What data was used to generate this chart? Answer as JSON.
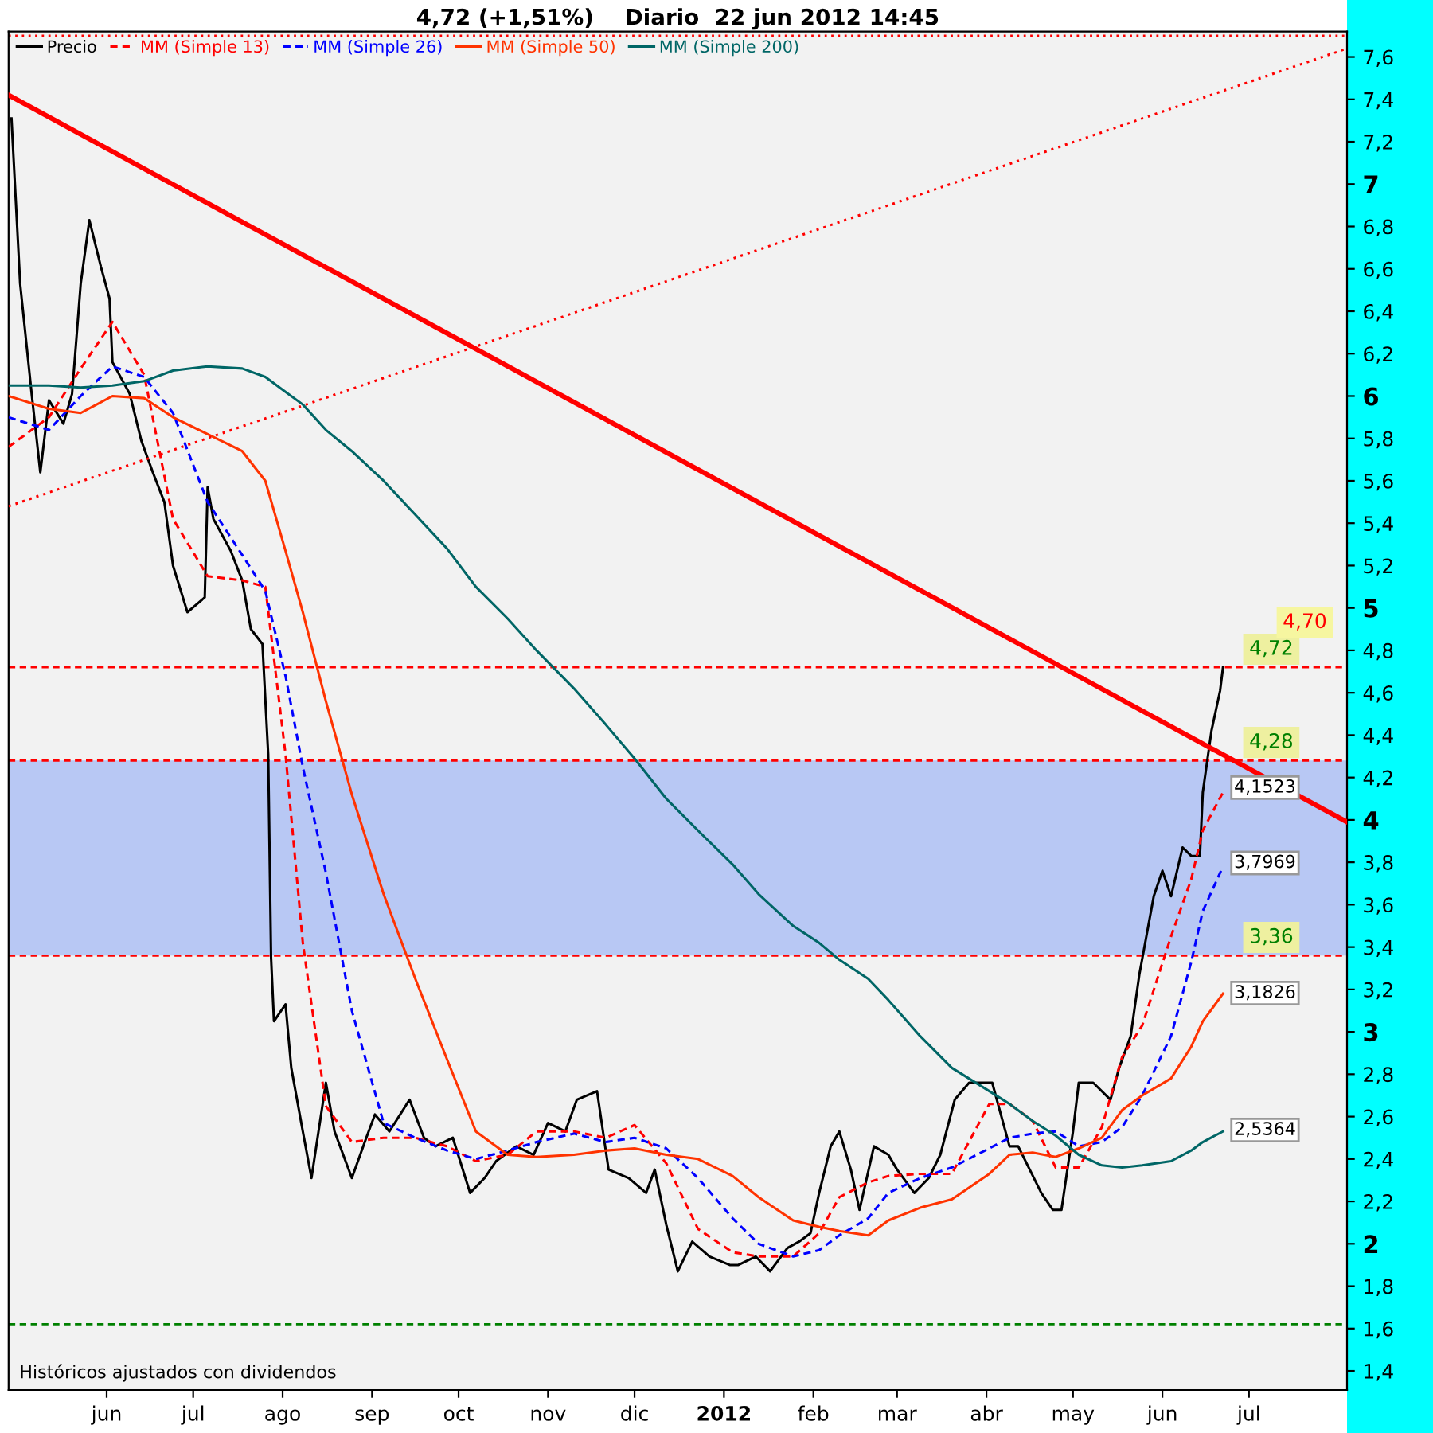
{
  "chart_data": {
    "type": "line",
    "title": "4,72 (+1,51%)    Diario  22 jun 2012 14:45",
    "xlim": [
      "2011-04-28",
      "2012-08-04"
    ],
    "xticks": [
      {
        "value": "2011-06-01",
        "label": "jun"
      },
      {
        "value": "2011-07-01",
        "label": "jul"
      },
      {
        "value": "2011-08-01",
        "label": "ago"
      },
      {
        "value": "2011-09-01",
        "label": "sep"
      },
      {
        "value": "2011-10-01",
        "label": "oct"
      },
      {
        "value": "2011-11-01",
        "label": "nov"
      },
      {
        "value": "2011-12-01",
        "label": "dic"
      },
      {
        "value": "2012-01-01",
        "label": "2012"
      },
      {
        "value": "2012-02-01",
        "label": "feb"
      },
      {
        "value": "2012-03-01",
        "label": "mar"
      },
      {
        "value": "2012-04-01",
        "label": "abr"
      },
      {
        "value": "2012-05-01",
        "label": "may"
      },
      {
        "value": "2012-06-01",
        "label": "jun"
      },
      {
        "value": "2012-07-01",
        "label": "jul"
      }
    ],
    "ylim": [
      1.31,
      7.72
    ],
    "yticks": [
      {
        "value": 1.4,
        "label": "1,4"
      },
      {
        "value": 1.6,
        "label": "1,6"
      },
      {
        "value": 1.8,
        "label": "1,8"
      },
      2,
      {
        "value": 2.2,
        "label": "2,2"
      },
      {
        "value": 2.4,
        "label": "2,4"
      },
      {
        "value": 2.6,
        "label": "2,6"
      },
      {
        "value": 2.8,
        "label": "2,8"
      },
      3,
      {
        "value": 3.2,
        "label": "3,2"
      },
      {
        "value": 3.4,
        "label": "3,4"
      },
      {
        "value": 3.6,
        "label": "3,6"
      },
      {
        "value": 3.8,
        "label": "3,8"
      },
      4,
      {
        "value": 4.2,
        "label": "4,2"
      },
      {
        "value": 4.4,
        "label": "4,4"
      },
      {
        "value": 4.6,
        "label": "4,6"
      },
      {
        "value": 4.8,
        "label": "4,8"
      },
      5,
      {
        "value": 5.2,
        "label": "5,2"
      },
      {
        "value": 5.4,
        "label": "5,4"
      },
      {
        "value": 5.6,
        "label": "5,6"
      },
      {
        "value": 5.8,
        "label": "5,8"
      },
      6,
      {
        "value": 6.2,
        "label": "6,2"
      },
      {
        "value": 6.4,
        "label": "6,4"
      },
      {
        "value": 6.6,
        "label": "6,6"
      },
      {
        "value": 6.8,
        "label": "6,8"
      },
      7,
      {
        "value": 7.2,
        "label": "7,2"
      },
      {
        "value": 7.4,
        "label": "7,4"
      },
      {
        "value": 7.6,
        "label": "7,6"
      }
    ],
    "grid": false,
    "legend": "top left",
    "series": [
      {
        "name": "Precio",
        "color": "#000000",
        "line_style": "solid",
        "x": [
          "2011-04-29",
          "2011-05-02",
          "2011-05-06",
          "2011-05-09",
          "2011-05-12",
          "2011-05-17",
          "2011-05-20",
          "2011-05-23",
          "2011-05-26",
          "2011-05-30",
          "2011-06-02",
          "2011-06-03",
          "2011-06-09",
          "2011-06-13",
          "2011-06-17",
          "2011-06-21",
          "2011-06-24",
          "2011-06-29",
          "2011-07-05",
          "2011-07-06",
          "2011-07-08",
          "2011-07-14",
          "2011-07-18",
          "2011-07-21",
          "2011-07-25",
          "2011-07-27",
          "2011-07-28",
          "2011-07-29",
          "2011-08-02",
          "2011-08-04",
          "2011-08-08",
          "2011-08-11",
          "2011-08-16",
          "2011-08-19",
          "2011-08-25",
          "2011-08-30",
          "2011-09-02",
          "2011-09-07",
          "2011-09-14",
          "2011-09-19",
          "2011-09-23",
          "2011-09-29",
          "2011-10-05",
          "2011-10-10",
          "2011-10-14",
          "2011-10-21",
          "2011-10-27",
          "2011-11-01",
          "2011-11-07",
          "2011-11-11",
          "2011-11-18",
          "2011-11-22",
          "2011-11-29",
          "2011-12-05",
          "2011-12-08",
          "2011-12-12",
          "2011-12-16",
          "2011-12-21",
          "2011-12-27",
          "2012-01-03",
          "2012-01-06",
          "2012-01-12",
          "2012-01-17",
          "2012-01-23",
          "2012-01-27",
          "2012-01-31",
          "2012-02-03",
          "2012-02-07",
          "2012-02-10",
          "2012-02-14",
          "2012-02-17",
          "2012-02-22",
          "2012-02-27",
          "2012-03-01",
          "2012-03-07",
          "2012-03-12",
          "2012-03-16",
          "2012-03-21",
          "2012-03-26",
          "2012-03-30",
          "2012-04-03",
          "2012-04-09",
          "2012-04-12",
          "2012-04-16",
          "2012-04-20",
          "2012-04-24",
          "2012-04-27",
          "2012-05-01",
          "2012-05-03",
          "2012-05-08",
          "2012-05-14",
          "2012-05-17",
          "2012-05-21",
          "2012-05-24",
          "2012-05-29",
          "2012-06-01",
          "2012-06-04",
          "2012-06-08",
          "2012-06-11",
          "2012-06-14",
          "2012-06-15",
          "2012-06-18",
          "2012-06-21",
          "2012-06-22"
        ],
        "values": [
          7.31,
          6.53,
          6.01,
          5.64,
          5.98,
          5.87,
          6.01,
          6.53,
          6.83,
          6.61,
          6.46,
          6.16,
          6.01,
          5.79,
          5.64,
          5.5,
          5.2,
          4.98,
          5.05,
          5.57,
          5.42,
          5.27,
          5.13,
          4.9,
          4.83,
          4.31,
          3.35,
          3.05,
          3.13,
          2.83,
          2.53,
          2.31,
          2.76,
          2.53,
          2.31,
          2.5,
          2.61,
          2.53,
          2.68,
          2.5,
          2.46,
          2.5,
          2.24,
          2.31,
          2.39,
          2.46,
          2.42,
          2.57,
          2.53,
          2.68,
          2.72,
          2.35,
          2.31,
          2.24,
          2.35,
          2.09,
          1.87,
          2.01,
          1.94,
          1.9,
          1.9,
          1.94,
          1.87,
          1.98,
          2.01,
          2.05,
          2.24,
          2.46,
          2.53,
          2.35,
          2.16,
          2.46,
          2.42,
          2.35,
          2.24,
          2.31,
          2.42,
          2.68,
          2.76,
          2.76,
          2.76,
          2.46,
          2.46,
          2.35,
          2.24,
          2.16,
          2.16,
          2.53,
          2.76,
          2.76,
          2.68,
          2.83,
          2.98,
          3.27,
          3.64,
          3.76,
          3.64,
          3.87,
          3.83,
          3.83,
          4.13,
          4.42,
          4.61,
          4.72
        ]
      },
      {
        "name": "MM (Simple 13)",
        "color": "#ff0000",
        "line_style": "dashed",
        "x": [
          "2011-04-28",
          "2011-05-12",
          "2011-05-23",
          "2011-06-03",
          "2011-06-14",
          "2011-06-24",
          "2011-07-06",
          "2011-07-18",
          "2011-07-26",
          "2011-08-02",
          "2011-08-08",
          "2011-08-16",
          "2011-08-25",
          "2011-09-05",
          "2011-09-16",
          "2011-09-27",
          "2011-10-07",
          "2011-10-18",
          "2011-10-28",
          "2011-11-10",
          "2011-11-21",
          "2011-12-01",
          "2011-12-12",
          "2011-12-23",
          "2012-01-04",
          "2012-01-13",
          "2012-01-25",
          "2012-02-03",
          "2012-02-10",
          "2012-02-20",
          "2012-02-27",
          "2012-03-09",
          "2012-03-20",
          "2012-04-02",
          "2012-04-09",
          "2012-04-17",
          "2012-04-25",
          "2012-05-03",
          "2012-05-11",
          "2012-05-18",
          "2012-05-25",
          "2012-06-04",
          "2012-06-11",
          "2012-06-15",
          "2012-06-22"
        ],
        "values": [
          5.76,
          5.9,
          6.13,
          6.35,
          6.1,
          5.42,
          5.15,
          5.13,
          5.1,
          4.31,
          3.42,
          2.65,
          2.48,
          2.5,
          2.5,
          2.46,
          2.39,
          2.42,
          2.53,
          2.53,
          2.5,
          2.56,
          2.38,
          2.07,
          1.96,
          1.94,
          1.94,
          2.05,
          2.22,
          2.29,
          2.32,
          2.33,
          2.33,
          2.66,
          2.66,
          2.58,
          2.36,
          2.36,
          2.55,
          2.88,
          3.03,
          3.45,
          3.72,
          3.95,
          4.13
        ]
      },
      {
        "name": "MM (Simple 26)",
        "color": "#0000ff",
        "line_style": "dashed",
        "x": [
          "2011-04-28",
          "2011-05-12",
          "2011-05-23",
          "2011-06-03",
          "2011-06-14",
          "2011-06-24",
          "2011-07-06",
          "2011-07-18",
          "2011-07-26",
          "2011-08-02",
          "2011-08-08",
          "2011-08-16",
          "2011-08-25",
          "2011-09-05",
          "2011-09-16",
          "2011-09-27",
          "2011-10-07",
          "2011-10-18",
          "2011-10-28",
          "2011-11-10",
          "2011-11-21",
          "2011-12-01",
          "2011-12-12",
          "2011-12-23",
          "2012-01-04",
          "2012-01-13",
          "2012-01-25",
          "2012-02-03",
          "2012-02-10",
          "2012-02-20",
          "2012-02-27",
          "2012-03-09",
          "2012-03-20",
          "2012-04-02",
          "2012-04-09",
          "2012-04-17",
          "2012-04-25",
          "2012-05-03",
          "2012-05-11",
          "2012-05-18",
          "2012-05-25",
          "2012-06-04",
          "2012-06-11",
          "2012-06-15",
          "2012-06-22"
        ],
        "values": [
          5.9,
          5.84,
          6.0,
          6.14,
          6.09,
          5.92,
          5.5,
          5.25,
          5.08,
          4.68,
          4.25,
          3.75,
          3.1,
          2.57,
          2.5,
          2.44,
          2.4,
          2.44,
          2.48,
          2.52,
          2.48,
          2.5,
          2.45,
          2.31,
          2.12,
          2.0,
          1.94,
          1.97,
          2.04,
          2.12,
          2.24,
          2.31,
          2.36,
          2.45,
          2.5,
          2.52,
          2.53,
          2.46,
          2.48,
          2.55,
          2.7,
          2.98,
          3.33,
          3.57,
          3.78
        ]
      },
      {
        "name": "MM (Simple 50)",
        "color": "#ff3300",
        "line_style": "solid",
        "x": [
          "2011-04-28",
          "2011-05-12",
          "2011-05-23",
          "2011-06-03",
          "2011-06-14",
          "2011-06-24",
          "2011-07-06",
          "2011-07-18",
          "2011-07-26",
          "2011-08-02",
          "2011-08-08",
          "2011-08-16",
          "2011-08-25",
          "2011-09-05",
          "2011-09-16",
          "2011-09-27",
          "2011-10-07",
          "2011-10-18",
          "2011-10-28",
          "2011-11-10",
          "2011-11-21",
          "2011-12-01",
          "2011-12-12",
          "2011-12-23",
          "2012-01-04",
          "2012-01-13",
          "2012-01-25",
          "2012-02-03",
          "2012-02-10",
          "2012-02-20",
          "2012-02-27",
          "2012-03-09",
          "2012-03-20",
          "2012-04-02",
          "2012-04-09",
          "2012-04-17",
          "2012-04-25",
          "2012-05-03",
          "2012-05-11",
          "2012-05-18",
          "2012-05-25",
          "2012-06-04",
          "2012-06-11",
          "2012-06-15",
          "2012-06-22"
        ],
        "values": [
          6.0,
          5.94,
          5.92,
          6.0,
          5.99,
          5.9,
          5.82,
          5.74,
          5.6,
          5.27,
          4.98,
          4.56,
          4.12,
          3.65,
          3.25,
          2.87,
          2.53,
          2.42,
          2.41,
          2.42,
          2.44,
          2.45,
          2.42,
          2.4,
          2.32,
          2.22,
          2.11,
          2.08,
          2.06,
          2.04,
          2.11,
          2.17,
          2.21,
          2.33,
          2.42,
          2.43,
          2.41,
          2.45,
          2.5,
          2.63,
          2.7,
          2.78,
          2.93,
          3.05,
          3.18
        ]
      },
      {
        "name": "MM (Simple 200)",
        "color": "#006666",
        "line_style": "solid",
        "x": [
          "2011-04-28",
          "2011-05-12",
          "2011-05-23",
          "2011-06-03",
          "2011-06-14",
          "2011-06-24",
          "2011-07-06",
          "2011-07-18",
          "2011-07-26",
          "2011-08-02",
          "2011-08-08",
          "2011-08-16",
          "2011-08-25",
          "2011-09-05",
          "2011-09-16",
          "2011-09-27",
          "2011-10-07",
          "2011-10-18",
          "2011-10-28",
          "2011-11-10",
          "2011-11-21",
          "2011-12-01",
          "2011-12-12",
          "2011-12-23",
          "2012-01-04",
          "2012-01-13",
          "2012-01-25",
          "2012-02-03",
          "2012-02-10",
          "2012-02-20",
          "2012-02-27",
          "2012-03-09",
          "2012-03-20",
          "2012-04-02",
          "2012-04-09",
          "2012-04-17",
          "2012-04-25",
          "2012-05-03",
          "2012-05-11",
          "2012-05-18",
          "2012-05-25",
          "2012-06-04",
          "2012-06-11",
          "2012-06-15",
          "2012-06-22"
        ],
        "values": [
          6.05,
          6.05,
          6.04,
          6.05,
          6.07,
          6.12,
          6.14,
          6.13,
          6.09,
          6.02,
          5.96,
          5.84,
          5.74,
          5.6,
          5.44,
          5.28,
          5.1,
          4.95,
          4.8,
          4.62,
          4.45,
          4.29,
          4.1,
          3.95,
          3.79,
          3.65,
          3.5,
          3.42,
          3.34,
          3.25,
          3.15,
          2.98,
          2.83,
          2.72,
          2.66,
          2.58,
          2.51,
          2.42,
          2.37,
          2.36,
          2.37,
          2.39,
          2.44,
          2.48,
          2.53
        ]
      },
      {
        "color": "#ff0000",
        "line_style": "solid",
        "x": [
          "2011-04-28",
          "2012-08-04"
        ],
        "values": [
          7.42,
          3.99
        ]
      },
      {
        "color": "#ff0000",
        "line_style": "dotted",
        "x": [
          "2011-04-28",
          "2012-08-04"
        ],
        "values": [
          5.48,
          7.64
        ]
      }
    ],
    "bands": [
      {
        "axis": "y",
        "from": 3.36,
        "to": 4.28,
        "color": "#b8c8f4"
      }
    ],
    "ref_lines": [
      {
        "axis": "y",
        "value": 7.7,
        "color": "#ff0000",
        "line_style": "dotted"
      },
      {
        "axis": "y",
        "value": 4.72,
        "label": "4,72",
        "color": "#ff0000",
        "line_style": "dashed"
      },
      {
        "axis": "y",
        "value": 4.28,
        "label": "4,28",
        "color": "#ff0000",
        "line_style": "dashed"
      },
      {
        "axis": "y",
        "value": 3.36,
        "label": "3,36",
        "color": "#ff0000",
        "line_style": "dashed"
      },
      {
        "axis": "y",
        "value": 1.62,
        "color": "#008000",
        "line_style": "dashed"
      }
    ],
    "annotations": [
      "Históricos ajustados con dividendos",
      "4,70",
      {
        "text": "4,1523",
        "x": "2012-06-22",
        "y": 4.1523
      },
      {
        "text": "3,7969",
        "x": "2012-06-22",
        "y": 3.7969
      },
      {
        "text": "3,1826",
        "x": "2012-06-22",
        "y": 3.1826
      },
      {
        "text": "2,5364",
        "x": "2012-06-22",
        "y": 2.5364
      }
    ]
  }
}
